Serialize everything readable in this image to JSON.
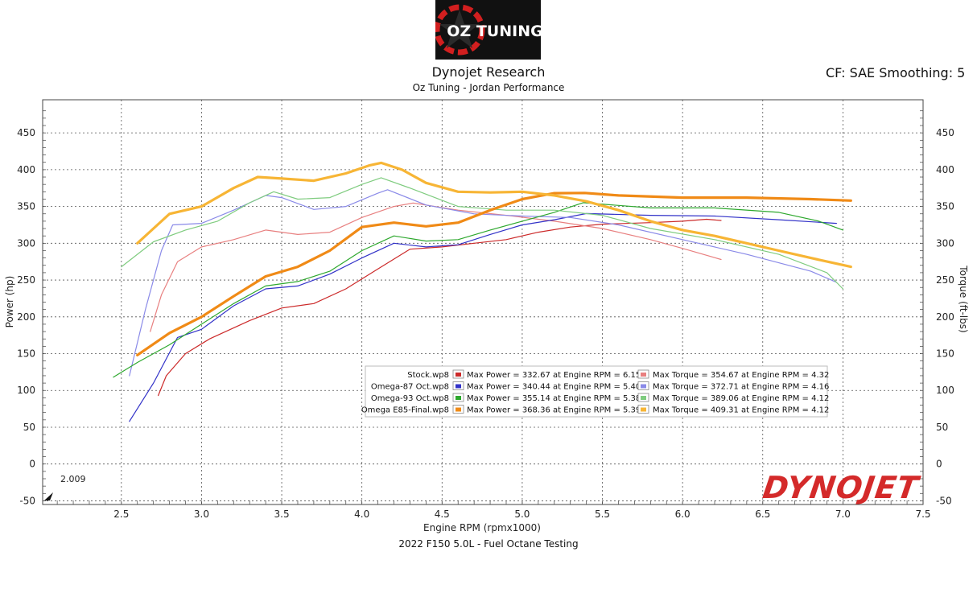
{
  "header": {
    "logo_text": "OZ TUNING",
    "title": "Dynojet Research",
    "subtitle": "Oz Tuning - Jordan Performance",
    "cf": "CF: SAE",
    "smoothing": "Smoothing: 5"
  },
  "footer": {
    "run_title": "2022 F150 5.0L - Fuel Octane Testing"
  },
  "brand": {
    "watermark_text": "DYNOJET"
  },
  "chart_data": {
    "type": "line",
    "xlabel": "Engine RPM (rpmx1000)",
    "ylabel_left": "Power (hp)",
    "ylabel_right": "Torque (ft-lbs)",
    "xlim": [
      2.009,
      7.5
    ],
    "ylim": [
      -55,
      495
    ],
    "x_ticks": [
      "2.5",
      "3.0",
      "3.5",
      "4.0",
      "4.5",
      "5.0",
      "5.5",
      "6.0",
      "6.5",
      "7.0",
      "7.5"
    ],
    "y_ticks": [
      "-50",
      "0",
      "50",
      "100",
      "150",
      "200",
      "250",
      "300",
      "350",
      "400",
      "450"
    ],
    "x_origin_label": "2.009",
    "grid": true,
    "series": [
      {
        "name": "Stock.wp8",
        "kind": "power",
        "color": "#cc2a2a",
        "width": 1.2,
        "x": [
          2.73,
          2.78,
          2.9,
          3.05,
          3.3,
          3.5,
          3.7,
          3.9,
          4.1,
          4.3,
          4.5,
          4.7,
          4.9,
          5.1,
          5.3,
          5.5,
          5.8,
          6.0,
          6.15,
          6.24
        ],
        "y": [
          93,
          120,
          150,
          170,
          195,
          212,
          218,
          238,
          265,
          292,
          295,
          300,
          305,
          315,
          322,
          326,
          328,
          330,
          332.67,
          331
        ]
      },
      {
        "name": "Stock.wp8",
        "kind": "torque",
        "color": "#e88080",
        "width": 1.2,
        "x": [
          2.68,
          2.75,
          2.85,
          3.0,
          3.2,
          3.4,
          3.6,
          3.8,
          4.0,
          4.2,
          4.32,
          4.6,
          4.9,
          5.2,
          5.5,
          5.8,
          6.0,
          6.24
        ],
        "y": [
          180,
          230,
          275,
          295,
          305,
          318,
          312,
          315,
          335,
          350,
          354.67,
          345,
          338,
          330,
          320,
          305,
          293,
          278
        ]
      },
      {
        "name": "Omega-87 Oct.wp8",
        "kind": "power",
        "color": "#3232c8",
        "width": 1.2,
        "x": [
          2.55,
          2.7,
          2.85,
          3.0,
          3.2,
          3.4,
          3.6,
          3.8,
          4.0,
          4.2,
          4.4,
          4.6,
          4.8,
          5.0,
          5.2,
          5.4,
          5.8,
          6.2,
          6.6,
          6.96
        ],
        "y": [
          58,
          110,
          172,
          183,
          215,
          238,
          242,
          258,
          280,
          300,
          295,
          298,
          312,
          325,
          332,
          340.44,
          338,
          337,
          332,
          327
        ]
      },
      {
        "name": "Omega-87 Oct.wp8",
        "kind": "torque",
        "color": "#8a8ae8",
        "width": 1.2,
        "x": [
          2.55,
          2.65,
          2.75,
          2.82,
          3.0,
          3.2,
          3.4,
          3.5,
          3.7,
          3.9,
          4.1,
          4.16,
          4.4,
          4.7,
          5.0,
          5.3,
          5.6,
          6.0,
          6.4,
          6.8,
          6.96
        ],
        "y": [
          120,
          210,
          290,
          325,
          327,
          345,
          365,
          362,
          346,
          350,
          368,
          372.71,
          352,
          340,
          337,
          335,
          325,
          305,
          285,
          262,
          247
        ]
      },
      {
        "name": "Omega-93 Oct.wp8",
        "kind": "power",
        "color": "#2ea82e",
        "width": 1.2,
        "x": [
          2.45,
          2.6,
          2.8,
          3.0,
          3.2,
          3.4,
          3.6,
          3.8,
          4.0,
          4.2,
          4.4,
          4.6,
          4.8,
          5.0,
          5.2,
          5.38,
          5.8,
          6.2,
          6.6,
          6.85,
          7.0
        ],
        "y": [
          118,
          138,
          162,
          190,
          218,
          242,
          248,
          262,
          290,
          310,
          303,
          305,
          318,
          330,
          342,
          355.14,
          348,
          348,
          342,
          330,
          318
        ]
      },
      {
        "name": "Omega-93 Oct.wp8",
        "kind": "torque",
        "color": "#7fcc7f",
        "width": 1.2,
        "x": [
          2.5,
          2.7,
          2.9,
          3.1,
          3.3,
          3.45,
          3.6,
          3.8,
          4.0,
          4.12,
          4.3,
          4.6,
          4.9,
          5.2,
          5.5,
          5.8,
          6.2,
          6.6,
          6.9,
          7.0
        ],
        "y": [
          268,
          302,
          318,
          330,
          355,
          370,
          360,
          362,
          380,
          389.06,
          375,
          350,
          345,
          345,
          338,
          320,
          305,
          285,
          260,
          238
        ]
      },
      {
        "name": "Omega E85-Final.wp8",
        "kind": "power",
        "color": "#f08a16",
        "width": 3.2,
        "x": [
          2.6,
          2.8,
          3.0,
          3.2,
          3.4,
          3.6,
          3.8,
          4.0,
          4.2,
          4.4,
          4.6,
          4.8,
          5.0,
          5.2,
          5.39,
          5.6,
          6.0,
          6.4,
          6.8,
          7.05
        ],
        "y": [
          148,
          178,
          200,
          228,
          255,
          268,
          290,
          322,
          328,
          323,
          328,
          345,
          360,
          368,
          368.36,
          365,
          362,
          362,
          360,
          358
        ]
      },
      {
        "name": "Omega E85-Final.wp8",
        "kind": "torque",
        "color": "#f7b535",
        "width": 3.2,
        "x": [
          2.6,
          2.7,
          2.8,
          3.0,
          3.2,
          3.35,
          3.5,
          3.7,
          3.9,
          4.05,
          4.12,
          4.25,
          4.4,
          4.6,
          4.8,
          5.0,
          5.2,
          5.4,
          5.6,
          5.8,
          6.0,
          6.2,
          6.4,
          6.6,
          6.8,
          7.05
        ],
        "y": [
          300,
          320,
          340,
          350,
          375,
          390,
          388,
          385,
          395,
          406,
          409.31,
          400,
          382,
          370,
          369,
          370,
          365,
          357,
          345,
          330,
          318,
          310,
          300,
          290,
          280,
          268
        ]
      }
    ],
    "legend": {
      "placement": "center-right",
      "rows": [
        {
          "file": "Stock.wp8",
          "power_color": "#cc2a2a",
          "torque_color": "#e88080",
          "power": "Max Power = 332.67 at Engine RPM = 6.15",
          "torque": "Max Torque = 354.67 at Engine RPM = 4.32"
        },
        {
          "file": "Omega-87 Oct.wp8",
          "power_color": "#3232c8",
          "torque_color": "#8a8ae8",
          "power": "Max Power = 340.44 at Engine RPM = 5.40",
          "torque": "Max Torque = 372.71 at Engine RPM = 4.16"
        },
        {
          "file": "Omega-93 Oct.wp8",
          "power_color": "#2ea82e",
          "torque_color": "#7fcc7f",
          "power": "Max Power = 355.14 at Engine RPM = 5.38",
          "torque": "Max Torque = 389.06 at Engine RPM = 4.12"
        },
        {
          "file": "Omega E85-Final.wp8",
          "power_color": "#f08a16",
          "torque_color": "#f7b535",
          "power": "Max Power = 368.36 at Engine RPM = 5.39",
          "torque": "Max Torque = 409.31 at Engine RPM = 4.12"
        }
      ]
    }
  }
}
